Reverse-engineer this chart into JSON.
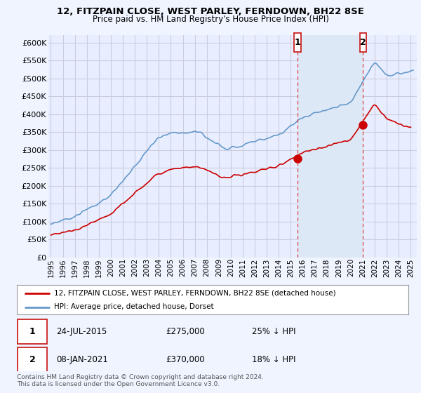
{
  "title": "12, FITZPAIN CLOSE, WEST PARLEY, FERNDOWN, BH22 8SE",
  "subtitle": "Price paid vs. HM Land Registry's House Price Index (HPI)",
  "bg_color": "#f0f4ff",
  "plot_bg_color": "#e8eeff",
  "grid_color": "#ccccdd",
  "hpi_color": "#6699cc",
  "price_color": "#cc0000",
  "dashed_line_color": "#dd4444",
  "shade_color": "#dce8f5",
  "marker1_date_x": 2015.56,
  "marker2_date_x": 2021.02,
  "marker1_price": 275000,
  "marker2_price": 370000,
  "legend_house": "12, FITZPAIN CLOSE, WEST PARLEY, FERNDOWN, BH22 8SE (detached house)",
  "legend_hpi": "HPI: Average price, detached house, Dorset",
  "annotation1_text": "24-JUL-2015",
  "annotation1_price": "£275,000",
  "annotation1_pct": "25% ↓ HPI",
  "annotation2_text": "08-JAN-2021",
  "annotation2_price": "£370,000",
  "annotation2_pct": "18% ↓ HPI",
  "footnote1": "Contains HM Land Registry data © Crown copyright and database right 2024.",
  "footnote2": "This data is licensed under the Open Government Licence v3.0.",
  "ylim": [
    0,
    620000
  ],
  "xlim_start": 1994.8,
  "xlim_end": 2025.5,
  "yticks": [
    0,
    50000,
    100000,
    150000,
    200000,
    250000,
    300000,
    350000,
    400000,
    450000,
    500000,
    550000,
    600000
  ],
  "xticks": [
    1995,
    1996,
    1997,
    1998,
    1999,
    2000,
    2001,
    2002,
    2003,
    2004,
    2005,
    2006,
    2007,
    2008,
    2009,
    2010,
    2011,
    2012,
    2013,
    2014,
    2015,
    2016,
    2017,
    2018,
    2019,
    2020,
    2021,
    2022,
    2023,
    2024,
    2025
  ]
}
